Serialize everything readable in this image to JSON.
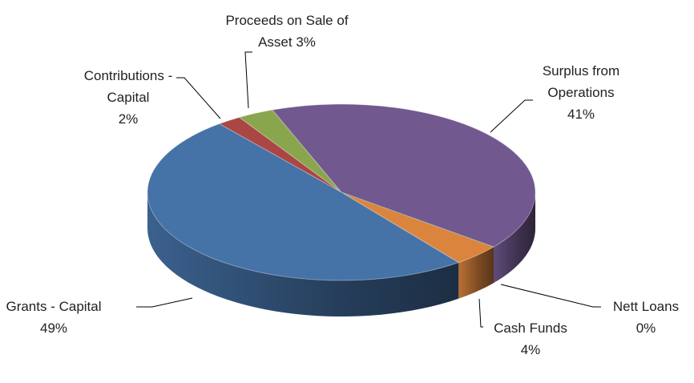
{
  "chart_data": {
    "type": "pie3d",
    "categories": [
      "Contributions - Capital",
      "Proceeds on Sale of",
      "Surplus from Operations",
      "Nett Loans",
      "Cash Funds",
      "Grants - Capital"
    ],
    "values": [
      2,
      3,
      41,
      0,
      4,
      49
    ],
    "value_labels": [
      "2%",
      "Asset 3%",
      "41%",
      "0%",
      "4%",
      "49%"
    ],
    "colors": [
      "#aa4643",
      "#89a54e",
      "#71588f",
      "#4198af",
      "#db843d",
      "#4572a7"
    ]
  }
}
